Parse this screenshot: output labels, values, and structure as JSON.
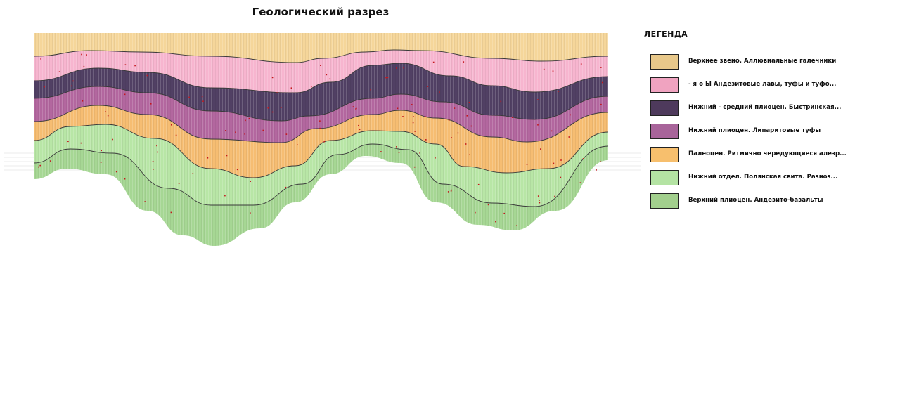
{
  "title": "Геологический разрез",
  "legend": {
    "title": "ЛЕГЕНДА",
    "items": [
      {
        "label": "Верхнее звено. Аллювиальные галечники",
        "color": "#e8c88a"
      },
      {
        "label": "- я о Ы Андезитовые лавы, туфы и туфо...",
        "color": "#f0a3c0"
      },
      {
        "label": "Нижний - средний плиоцен. Быстринская...",
        "color": "#4e3a5c"
      },
      {
        "label": "Нижний плиоцен. Липаритовые туфы",
        "color": "#a8649a"
      },
      {
        "label": "Палеоцен. Ритмично чередующиеся алезр...",
        "color": "#f7bf6d"
      },
      {
        "label": "Нижний отдел. Полянская свита. Разноз...",
        "color": "#b4e3a3"
      },
      {
        "label": "Верхний плиоцен. Андезито-базальты",
        "color": "#a2cf8d"
      }
    ]
  },
  "section": {
    "layer_fills": [
      "#f5d69a",
      "#f7b5cf",
      "#514064",
      "#b3679f",
      "#f6bd72",
      "#b8e6a6",
      "#a6d794"
    ],
    "boundary_color": "#3a3a3a",
    "inclusion_color": "#c4161c"
  }
}
